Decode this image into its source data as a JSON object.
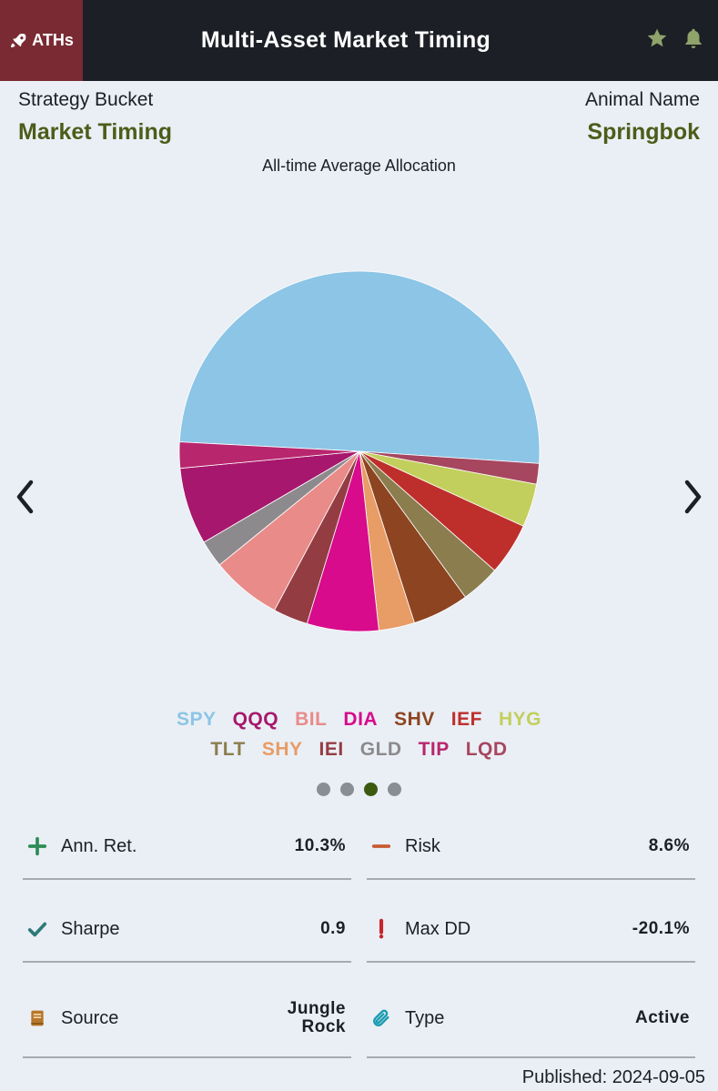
{
  "app": {
    "brand_label": "ATHs",
    "title": "Multi-Asset Market Timing"
  },
  "header": {
    "strategy_label": "Strategy Bucket",
    "strategy_value": "Market Timing",
    "animal_label": "Animal Name",
    "animal_value": "Springbok"
  },
  "chart_data": {
    "type": "pie",
    "title": "All-time Average Allocation",
    "slices": [
      {
        "label": "SPY",
        "value": 51.6,
        "color": "#8cc5e6"
      },
      {
        "label": "LQD",
        "value": 1.9,
        "color": "#a6475f"
      },
      {
        "label": "HYG",
        "value": 4.0,
        "color": "#c3cf5c"
      },
      {
        "label": "IEF",
        "value": 4.8,
        "color": "#be2f2c"
      },
      {
        "label": "TLT",
        "value": 3.6,
        "color": "#8b7d4e"
      },
      {
        "label": "SHV",
        "value": 5.2,
        "color": "#8d4420"
      },
      {
        "label": "SHY",
        "value": 3.3,
        "color": "#e89c66"
      },
      {
        "label": "DIA",
        "value": 6.6,
        "color": "#d70b8b"
      },
      {
        "label": "IEI",
        "value": 3.2,
        "color": "#933d43"
      },
      {
        "label": "BIL",
        "value": 6.5,
        "color": "#e98b89"
      },
      {
        "label": "GLD",
        "value": 2.5,
        "color": "#8c8a8c"
      },
      {
        "label": "QQQ",
        "value": 7.1,
        "color": "#a7176d"
      },
      {
        "label": "TIP",
        "value": 2.4,
        "color": "#b8266e"
      }
    ]
  },
  "legend": {
    "row1": [
      {
        "label": "SPY",
        "color": "#8cc5e6"
      },
      {
        "label": "QQQ",
        "color": "#a7176d"
      },
      {
        "label": "BIL",
        "color": "#e98b89"
      },
      {
        "label": "DIA",
        "color": "#d70b8b"
      },
      {
        "label": "SHV",
        "color": "#8d4420"
      },
      {
        "label": "IEF",
        "color": "#be2f2c"
      },
      {
        "label": "HYG",
        "color": "#c3cf5c"
      }
    ],
    "row2": [
      {
        "label": "TLT",
        "color": "#8b7d4e"
      },
      {
        "label": "SHY",
        "color": "#e89c66"
      },
      {
        "label": "IEI",
        "color": "#933d43"
      },
      {
        "label": "GLD",
        "color": "#8c8a8c"
      },
      {
        "label": "TIP",
        "color": "#b8266e"
      },
      {
        "label": "LQD",
        "color": "#a6475f"
      }
    ]
  },
  "carousel": {
    "page_count": 4,
    "active_page": 3
  },
  "stats": {
    "ann_ret": {
      "label": "Ann. Ret.",
      "value": "10.3%",
      "icon": "plus-icon",
      "color": "#2e8b57"
    },
    "risk": {
      "label": "Risk",
      "value": "8.6%",
      "icon": "minus-icon",
      "color": "#c85a32"
    },
    "sharpe": {
      "label": "Sharpe",
      "value": "0.9",
      "icon": "check-icon",
      "color": "#2c7a78"
    },
    "max_dd": {
      "label": "Max DD",
      "value": "-20.1%",
      "icon": "exclamation-icon",
      "color": "#c8242b"
    },
    "source": {
      "label": "Source",
      "value_line1": "Jungle",
      "value_line2": "Rock",
      "icon": "book-icon",
      "color": "#b8762a"
    },
    "type": {
      "label": "Type",
      "value": "Active",
      "icon": "paperclip-icon",
      "color": "#1a9bb0"
    }
  },
  "footer": {
    "published": "Published: 2024-09-05"
  }
}
